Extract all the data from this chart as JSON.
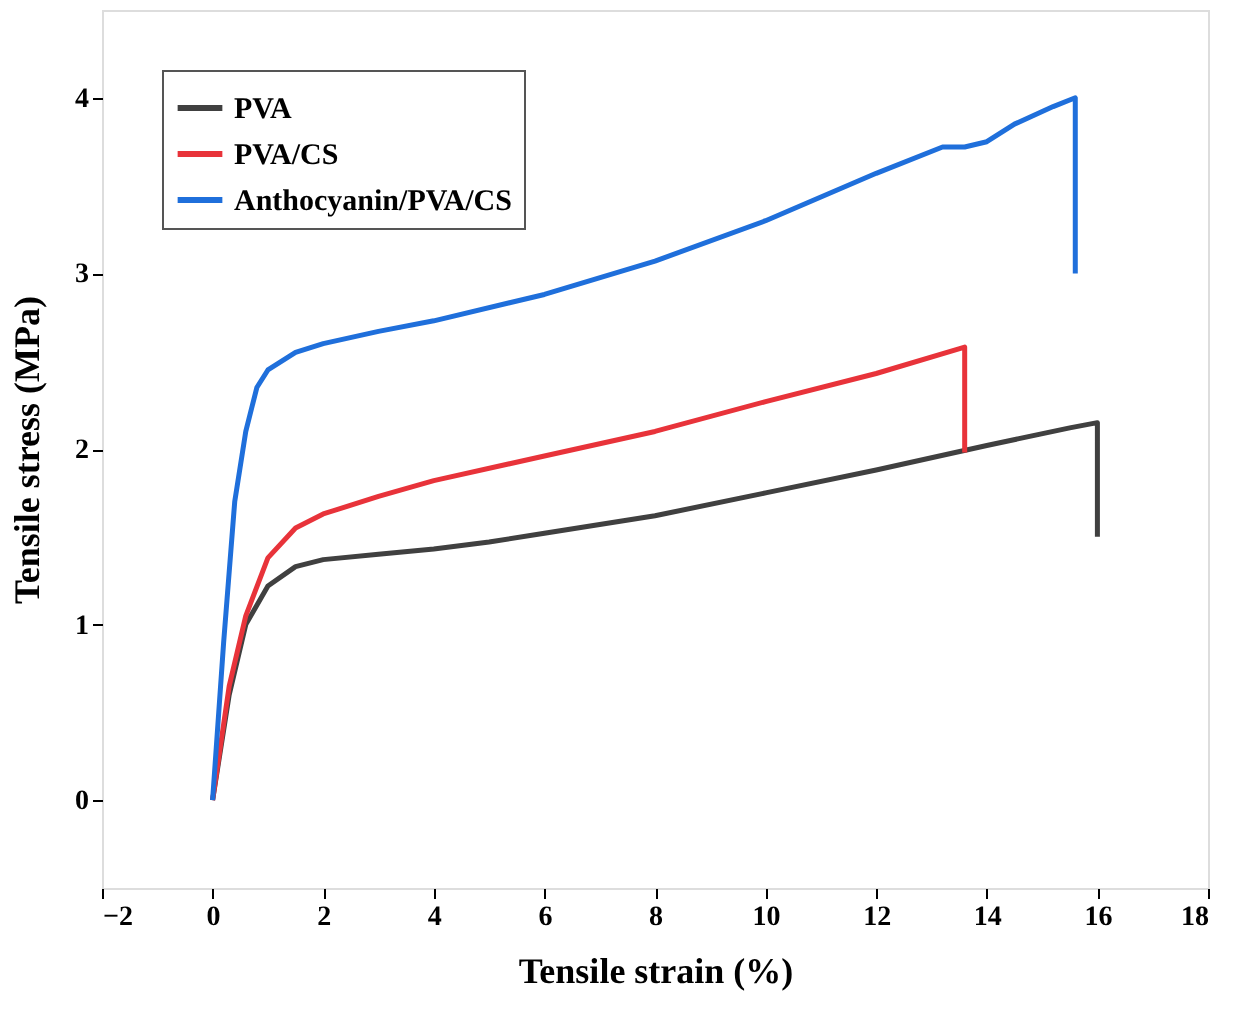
{
  "chart_data": {
    "type": "line",
    "xlabel": "Tensile strain (%)",
    "ylabel": "Tensile stress (MPa)",
    "xlim": [
      -2,
      18
    ],
    "xticks": [
      -2,
      0,
      2,
      4,
      6,
      8,
      10,
      12,
      14,
      16,
      18
    ],
    "ylim": [
      -0.5,
      4.5
    ],
    "yticks": [
      0,
      1,
      2,
      3,
      4
    ],
    "grid": false,
    "legend": "top left",
    "marker": "none",
    "line_style": "solid",
    "series": [
      {
        "name": "PVA",
        "color": "#404040",
        "x": [
          0,
          0.3,
          0.6,
          1,
          1.5,
          2,
          3,
          4,
          5,
          6,
          8,
          10,
          12,
          14,
          15.5,
          16,
          16
        ],
        "values": [
          0,
          0.6,
          1.0,
          1.22,
          1.33,
          1.37,
          1.4,
          1.43,
          1.47,
          1.52,
          1.62,
          1.75,
          1.88,
          2.02,
          2.12,
          2.15,
          1.5
        ]
      },
      {
        "name": "PVA/CS",
        "color": "#e8333a",
        "x": [
          0,
          0.3,
          0.6,
          1,
          1.5,
          2,
          3,
          4,
          6,
          8,
          10,
          12,
          13.6,
          13.6
        ],
        "values": [
          0,
          0.65,
          1.05,
          1.38,
          1.55,
          1.63,
          1.73,
          1.82,
          1.96,
          2.1,
          2.27,
          2.43,
          2.58,
          1.98
        ]
      },
      {
        "name": "Anthocyanin/PVA/CS",
        "color": "#1f6fdb",
        "x": [
          0,
          0.2,
          0.4,
          0.6,
          0.8,
          1,
          1.5,
          2,
          3,
          4,
          6,
          8,
          10,
          12,
          13.2,
          13.6,
          14,
          14.5,
          15.2,
          15.6,
          15.6
        ],
        "values": [
          0,
          0.9,
          1.7,
          2.1,
          2.35,
          2.45,
          2.55,
          2.6,
          2.67,
          2.73,
          2.88,
          3.07,
          3.3,
          3.57,
          3.72,
          3.72,
          3.75,
          3.85,
          3.95,
          4.0,
          3.0
        ]
      }
    ]
  }
}
